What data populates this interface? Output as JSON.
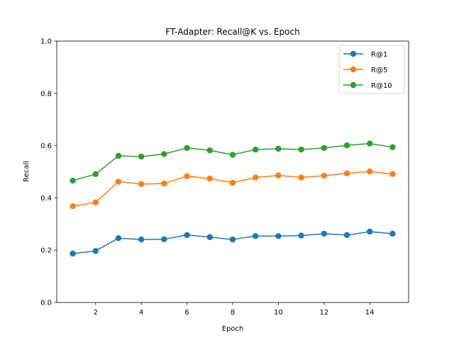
{
  "chart_data": {
    "type": "line",
    "title": "FT-Adapter: Recall@K vs. Epoch",
    "xlabel": "Epoch",
    "ylabel": "Recall",
    "x": [
      1,
      2,
      3,
      4,
      5,
      6,
      7,
      8,
      9,
      10,
      11,
      12,
      13,
      14,
      15
    ],
    "xlim": [
      0.3,
      15.7
    ],
    "ylim": [
      0.0,
      1.0
    ],
    "xticks": [
      2,
      4,
      6,
      8,
      10,
      12,
      14
    ],
    "yticks": [
      0.0,
      0.2,
      0.4,
      0.6,
      0.8,
      1.0
    ],
    "xtick_labels": [
      "2",
      "4",
      "6",
      "8",
      "10",
      "12",
      "14"
    ],
    "ytick_labels": [
      "0.0",
      "0.2",
      "0.4",
      "0.6",
      "0.8",
      "1.0"
    ],
    "grid": false,
    "legend_position": "top-right",
    "series": [
      {
        "name": "R@1",
        "color": "#1f77b4",
        "marker": "circle",
        "values": [
          0.187,
          0.197,
          0.246,
          0.241,
          0.242,
          0.258,
          0.25,
          0.241,
          0.254,
          0.254,
          0.256,
          0.263,
          0.258,
          0.271,
          0.263
        ]
      },
      {
        "name": "R@5",
        "color": "#ff7f0e",
        "marker": "circle",
        "values": [
          0.368,
          0.383,
          0.462,
          0.453,
          0.455,
          0.483,
          0.474,
          0.458,
          0.478,
          0.486,
          0.478,
          0.485,
          0.494,
          0.501,
          0.491
        ]
      },
      {
        "name": "R@10",
        "color": "#2ca02c",
        "marker": "circle",
        "values": [
          0.466,
          0.491,
          0.561,
          0.558,
          0.568,
          0.591,
          0.582,
          0.565,
          0.585,
          0.588,
          0.585,
          0.591,
          0.601,
          0.608,
          0.594
        ]
      }
    ]
  }
}
